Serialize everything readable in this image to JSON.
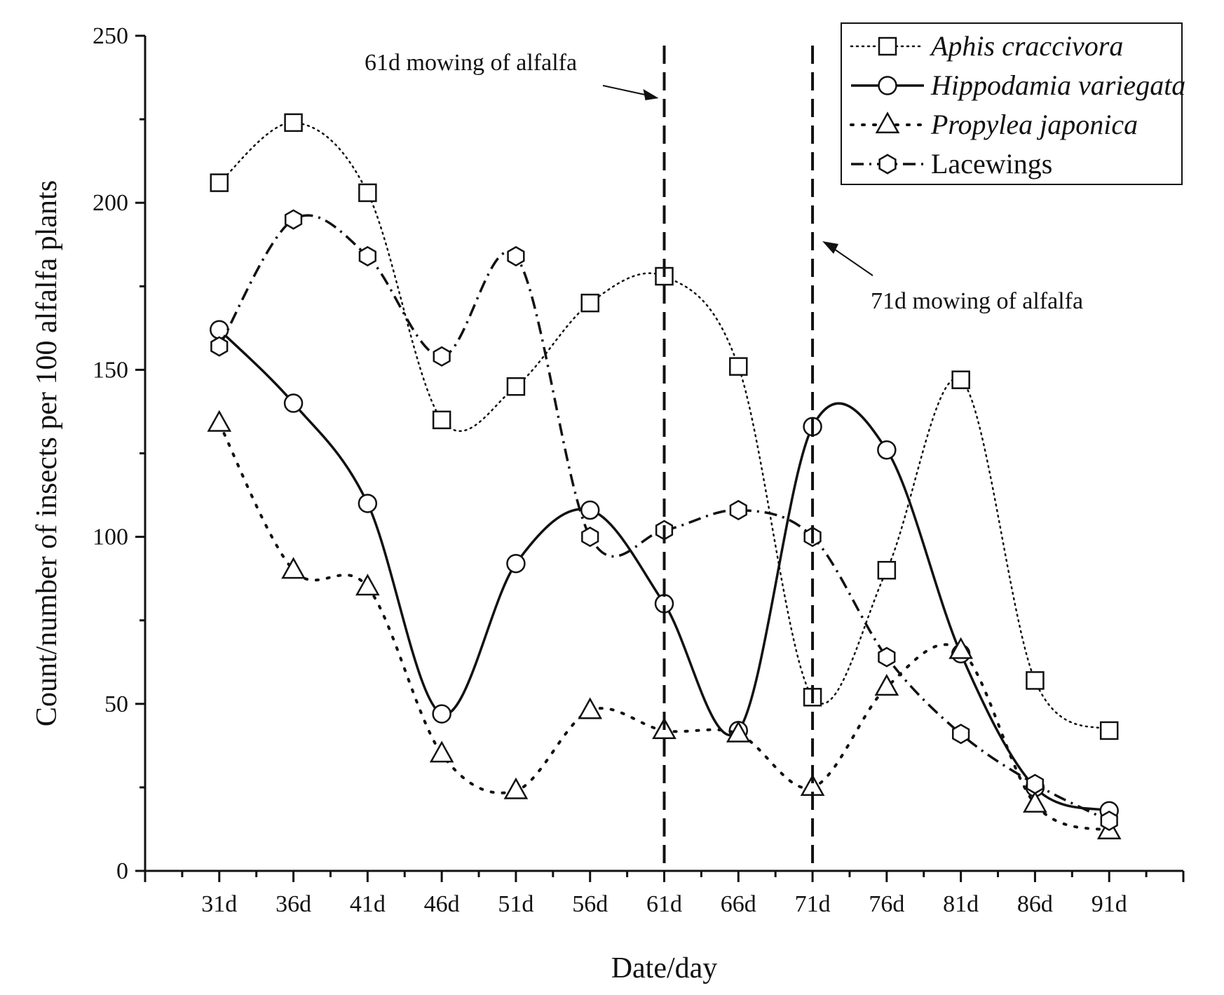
{
  "chart_data": {
    "type": "line",
    "title": "",
    "xlabel": "Date/day",
    "ylabel": "Count/number of insects per 100 alfalfa plants",
    "categories": [
      "31d",
      "36d",
      "41d",
      "46d",
      "51d",
      "56d",
      "61d",
      "66d",
      "71d",
      "76d",
      "81d",
      "86d",
      "91d"
    ],
    "ylim": [
      0,
      250
    ],
    "yticks": [
      0,
      50,
      100,
      150,
      200,
      250
    ],
    "grid": false,
    "legend_position": "top-right",
    "series": [
      {
        "name": "Aphis craccivora",
        "italic": true,
        "marker": "square",
        "line_style": "dotted",
        "values": [
          206,
          224,
          203,
          135,
          145,
          170,
          178,
          151,
          52,
          90,
          147,
          57,
          42
        ]
      },
      {
        "name": "Hippodamia variegata",
        "italic": true,
        "marker": "circle",
        "line_style": "solid",
        "values": [
          162,
          140,
          110,
          47,
          92,
          108,
          80,
          42,
          133,
          126,
          65,
          25,
          18
        ]
      },
      {
        "name": "Propylea japonica",
        "italic": true,
        "marker": "triangle",
        "line_style": "dot",
        "values": [
          134,
          90,
          85,
          35,
          24,
          48,
          42,
          41,
          25,
          55,
          66,
          20,
          12
        ]
      },
      {
        "name": "Lacewings",
        "italic": false,
        "marker": "hexagon",
        "line_style": "dash-dot",
        "values": [
          157,
          195,
          184,
          154,
          184,
          100,
          102,
          108,
          100,
          64,
          41,
          26,
          15
        ]
      }
    ],
    "annotations": [
      {
        "text": "61d mowing of alfalfa",
        "at": "61d"
      },
      {
        "text": "71d mowing of alfalfa",
        "at": "71d"
      }
    ],
    "colors": {
      "ink": "#111111",
      "background": "#ffffff"
    }
  }
}
